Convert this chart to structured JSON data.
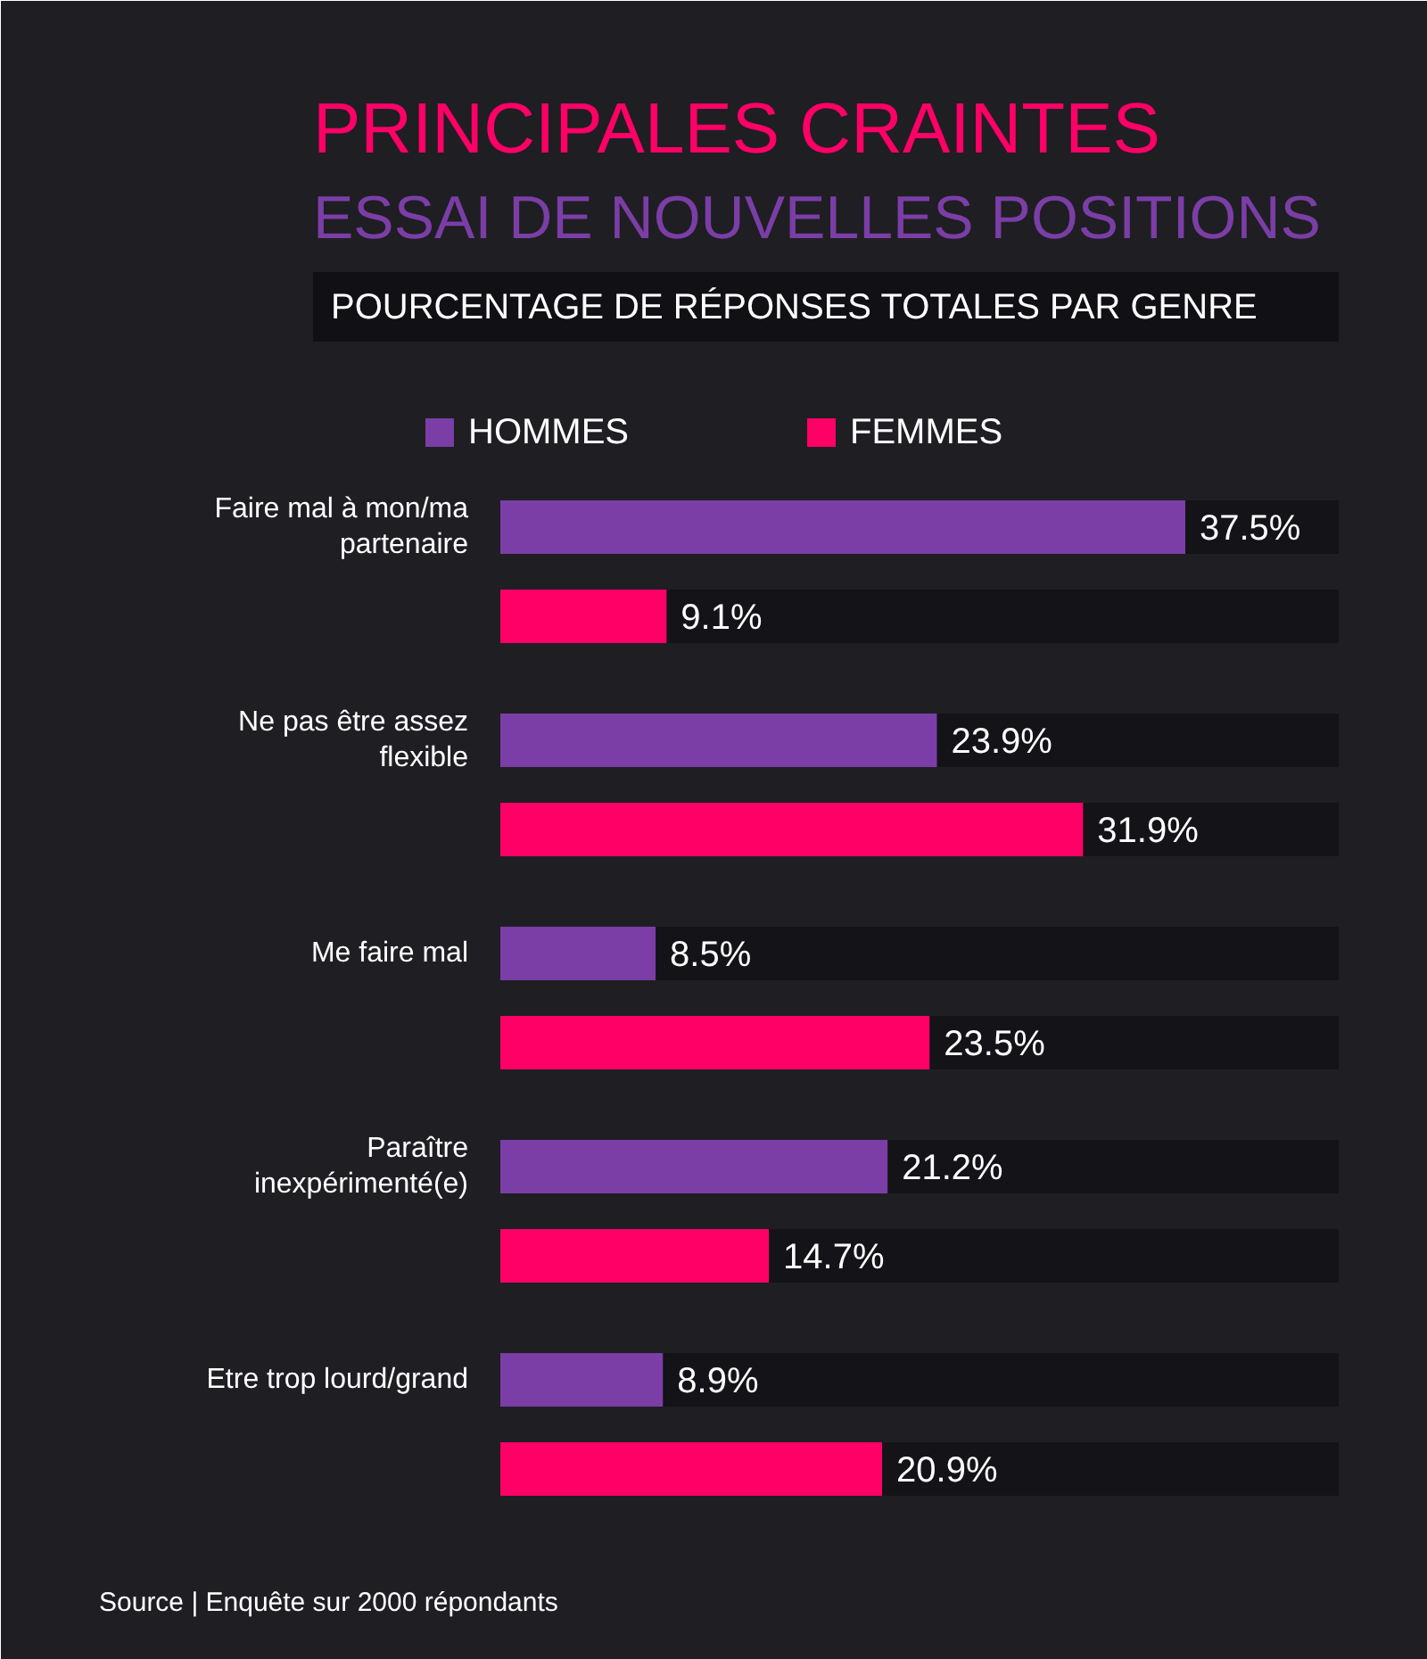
{
  "chart_data": {
    "type": "bar",
    "orientation": "horizontal",
    "title": "PRINCIPALES CRAINTES",
    "subtitle": "ESSAI DE NOUVELLES POSITIONS",
    "annotations": [
      "POURCENTAGE DE RÉPONSES TOTALES PAR GENRE",
      "Source | Enquête sur 2000 répondants"
    ],
    "categories": [
      "Faire mal à mon/ma partenaire",
      "Ne pas être assez flexible",
      "Me faire mal",
      "Paraître inexpérimenté(e)",
      "Etre trop lourd/grand"
    ],
    "series": [
      {
        "name": "HOMMES",
        "color": "#7a3ea6",
        "values": [
          37.5,
          23.9,
          8.5,
          21.2,
          8.9
        ],
        "value_labels": [
          "37.5%",
          "23.9%",
          "8.5%",
          "21.2%",
          "8.9%"
        ]
      },
      {
        "name": "FEMMES",
        "color": "#ff0066",
        "values": [
          9.1,
          31.9,
          23.5,
          14.7,
          20.9
        ],
        "value_labels": [
          "9.1%",
          "31.9%",
          "23.5%",
          "14.7%",
          "20.9%"
        ]
      }
    ],
    "legend": "top",
    "grid": false
  }
}
